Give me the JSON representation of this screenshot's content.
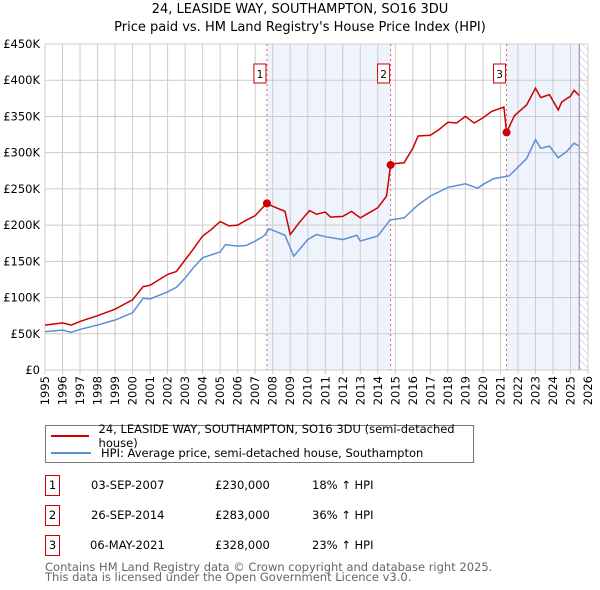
{
  "chart_data": {
    "type": "line",
    "title": "24, LEASIDE WAY, SOUTHAMPTON, SO16 3DU",
    "subtitle": "Price paid vs. HM Land Registry's House Price Index (HPI)",
    "xlim": [
      1995,
      2026
    ],
    "ylim": [
      0,
      450000
    ],
    "x_ticks": [
      "1995",
      "1996",
      "1997",
      "1998",
      "1999",
      "2000",
      "2001",
      "2002",
      "2003",
      "2004",
      "2005",
      "2006",
      "2007",
      "2008",
      "2009",
      "2010",
      "2011",
      "2012",
      "2013",
      "2014",
      "2015",
      "2016",
      "2017",
      "2018",
      "2019",
      "2020",
      "2021",
      "2022",
      "2023",
      "2024",
      "2025",
      "2026"
    ],
    "y_ticks": [
      {
        "v": 0,
        "label": "£0"
      },
      {
        "v": 50000,
        "label": "£50K"
      },
      {
        "v": 100000,
        "label": "£100K"
      },
      {
        "v": 150000,
        "label": "£150K"
      },
      {
        "v": 200000,
        "label": "£200K"
      },
      {
        "v": 250000,
        "label": "£250K"
      },
      {
        "v": 300000,
        "label": "£300K"
      },
      {
        "v": 350000,
        "label": "£350K"
      },
      {
        "v": 400000,
        "label": "£400K"
      },
      {
        "v": 450000,
        "label": "£450K"
      }
    ],
    "grid": true,
    "series": [
      {
        "name": "24, LEASIDE WAY, SOUTHAMPTON, SO16 3DU (semi-detached house)",
        "color": "#cc0000",
        "x": [
          1995,
          1996,
          1996.5,
          1997,
          1998,
          1999,
          2000,
          2000.6,
          2001,
          2002,
          2002.5,
          2003,
          2003.5,
          2004,
          2004.5,
          2005,
          2005.5,
          2006,
          2006.5,
          2007,
          2007.5,
          2007.67,
          2008,
          2008.7,
          2009,
          2009.5,
          2010.1,
          2010.5,
          2011,
          2011.3,
          2012,
          2012.5,
          2013,
          2013.5,
          2014,
          2014.5,
          2014.73,
          2015,
          2015.5,
          2016,
          2016.3,
          2017,
          2017.5,
          2018,
          2018.5,
          2019,
          2019.5,
          2020,
          2020.5,
          2021.2,
          2021.35,
          2021.8,
          2022.5,
          2023,
          2023.3,
          2023.8,
          2024.3,
          2024.5,
          2025,
          2025.2,
          2025.5
        ],
        "y": [
          62000,
          65000,
          62000,
          67000,
          75000,
          84000,
          97000,
          115000,
          117000,
          132000,
          136000,
          152000,
          168000,
          185000,
          194000,
          205000,
          199000,
          200000,
          207000,
          213000,
          226000,
          230000,
          226000,
          219000,
          187000,
          203000,
          220000,
          215000,
          218000,
          211000,
          212000,
          219000,
          210000,
          217000,
          224000,
          240000,
          283000,
          285000,
          286000,
          306000,
          323000,
          324000,
          332000,
          342000,
          341000,
          350000,
          341000,
          348000,
          357000,
          363000,
          328000,
          351000,
          366000,
          389000,
          376000,
          380000,
          359000,
          370000,
          378000,
          386000,
          379000
        ]
      },
      {
        "name": "HPI: Average price, semi-detached house, Southampton",
        "color": "#5b8fd4",
        "x": [
          1995,
          1996,
          1996.5,
          1997,
          1998,
          1999,
          2000,
          2000.6,
          2001,
          2002,
          2002.5,
          2003,
          2003.5,
          2004,
          2005,
          2005.3,
          2006,
          2006.5,
          2007,
          2007.5,
          2007.8,
          2008.7,
          2009.2,
          2010,
          2010.5,
          2011,
          2012,
          2012.8,
          2013,
          2014,
          2014.7,
          2015.5,
          2016.3,
          2017,
          2018,
          2019,
          2019.7,
          2020,
          2020.6,
          2021.5,
          2022.5,
          2023,
          2023.3,
          2023.8,
          2024.3,
          2024.8,
          2025.2,
          2025.5
        ],
        "y": [
          53000,
          55000,
          52000,
          56000,
          62000,
          69000,
          79000,
          99000,
          98000,
          108000,
          114000,
          127000,
          142000,
          155000,
          163000,
          173000,
          171000,
          172000,
          178000,
          185000,
          195000,
          186000,
          157000,
          180000,
          187000,
          184000,
          180000,
          186000,
          178000,
          185000,
          207000,
          210000,
          228000,
          240000,
          252000,
          257000,
          251000,
          256000,
          264000,
          268000,
          292000,
          318000,
          306000,
          309000,
          293000,
          302000,
          313000,
          309000
        ]
      }
    ],
    "sales": [
      {
        "id": "1",
        "x": 2007.67,
        "y": 230000,
        "date": "03-SEP-2007",
        "price": "£230,000",
        "hpi": "18% ↑ HPI"
      },
      {
        "id": "2",
        "x": 2014.73,
        "y": 283000,
        "date": "26-SEP-2014",
        "price": "£283,000",
        "hpi": "36% ↑ HPI"
      },
      {
        "id": "3",
        "x": 2021.35,
        "y": 328000,
        "date": "06-MAY-2021",
        "price": "£328,000",
        "hpi": "23% ↑ HPI"
      }
    ],
    "shaded_ranges": [
      [
        2007.67,
        2014.73
      ],
      [
        2021.35,
        2025.5
      ]
    ],
    "forecast_from": 2025.5,
    "legend_placement": "below"
  },
  "footer": {
    "line1": "Contains HM Land Registry data © Crown copyright and database right 2025.",
    "line2": "This data is licensed under the Open Government Licence v3.0."
  }
}
